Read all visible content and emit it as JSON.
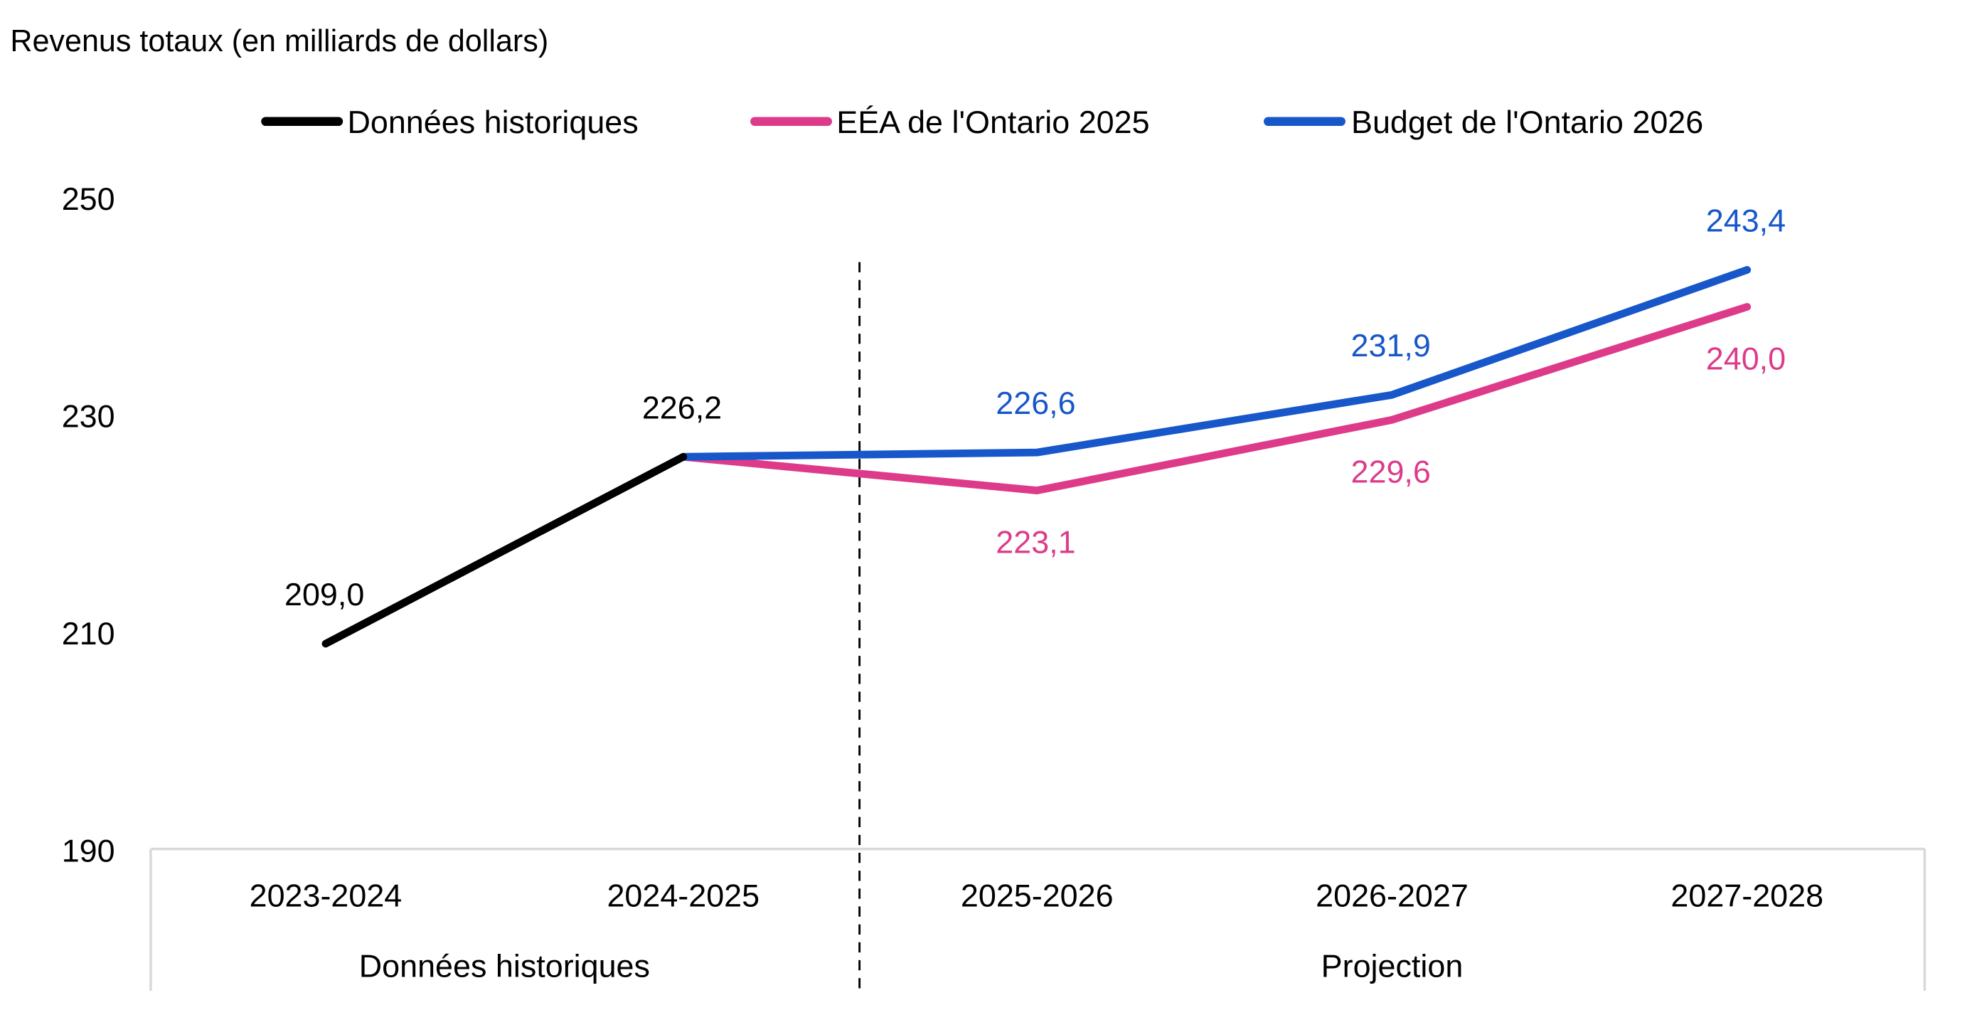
{
  "chart_data": {
    "type": "line",
    "title": "Revenus totaux (en milliards de dollars)",
    "xlabel": "",
    "ylabel": "Revenus totaux (en milliards de dollars)",
    "ylim": [
      190,
      250
    ],
    "yticks": [
      190,
      210,
      230,
      250
    ],
    "ytick_labels": [
      "190",
      "210",
      "230",
      "250"
    ],
    "grid": false,
    "legend_position": "top-center",
    "categories": [
      "2023-2024",
      "2024-2025",
      "2025-2026",
      "2026-2027",
      "2027-2028"
    ],
    "category_groups": [
      {
        "label": "Données historiques",
        "start": 0,
        "end": 1
      },
      {
        "label": "Projection",
        "start": 2,
        "end": 4
      }
    ],
    "divider_between": [
      1,
      2
    ],
    "series": [
      {
        "name": "Données historiques",
        "color": "#000000",
        "values": [
          209.0,
          226.2,
          null,
          null,
          null
        ],
        "labels": [
          "209,0",
          "226,2",
          null,
          null,
          null
        ],
        "label_pos": [
          "above",
          "above",
          null,
          null,
          null
        ]
      },
      {
        "name": "EÉA de l'Ontario 2025",
        "color": "#DD3B8A",
        "values": [
          null,
          226.2,
          223.1,
          229.6,
          240.0
        ],
        "labels": [
          null,
          null,
          "223,1",
          "229,6",
          "240,0"
        ],
        "label_pos": [
          null,
          null,
          "below",
          "below",
          "below"
        ]
      },
      {
        "name": "Budget de l'Ontario 2026",
        "color": "#1757C9",
        "values": [
          null,
          226.2,
          226.6,
          231.9,
          243.4
        ],
        "labels": [
          null,
          null,
          "226,6",
          "231,9",
          "243,4"
        ],
        "label_pos": [
          null,
          null,
          "above",
          "above",
          "above"
        ]
      }
    ]
  }
}
